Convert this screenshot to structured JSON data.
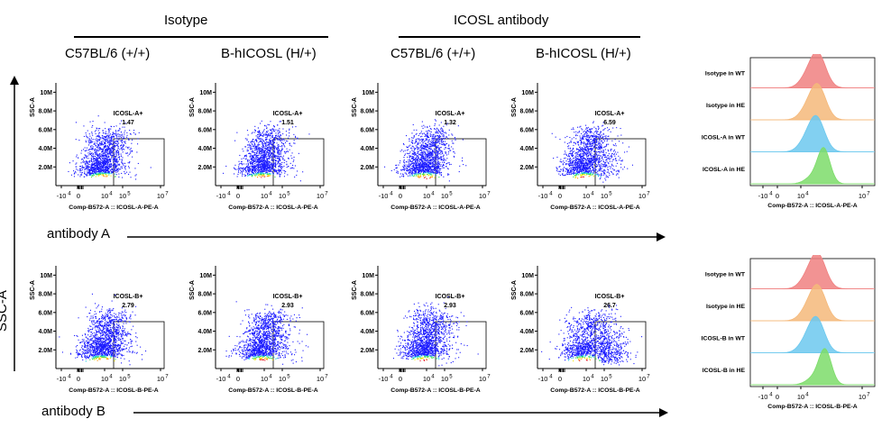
{
  "groups": [
    {
      "label": "Isotype"
    },
    {
      "label": "ICOSL antibody"
    }
  ],
  "columns": [
    "C57BL/6 (+/+)",
    "B-hICOSL (H/+)",
    "C57BL/6 (+/+)",
    "B-hICOSL (H/+)"
  ],
  "y_axis_title": "SSC-A",
  "rows": [
    {
      "label": "antibody A",
      "gate_name": "ICOSL-A+",
      "x_axis": "Comp-B572-A :: ICOSL-A-PE-A"
    },
    {
      "label": "antibody B",
      "gate_name": "ICOSL-B+",
      "x_axis": "Comp-B572-A :: ICOSL-B-PE-A"
    }
  ],
  "histograms": [
    {
      "x_axis": "Comp-B572-A :: ICOSL-A-PE-A",
      "tracks": [
        "Isotype in WT",
        "Isotype in HE",
        "ICOSL-A in WT",
        "ICOSL-A in HE"
      ]
    },
    {
      "x_axis": "Comp-B572-A :: ICOSL-B-PE-A",
      "tracks": [
        "Isotype in WT",
        "Isotype in HE",
        "ICOSL-B in WT",
        "ICOSL-B in HE"
      ]
    }
  ],
  "chart_data": [
    {
      "type": "scatter",
      "title": "",
      "row": "antibody A",
      "column": "C57BL/6 (+/+)",
      "group": "Isotype",
      "gate": "ICOSL-A+",
      "gate_percent": "1.47",
      "xlabel": "Comp-B572-A :: ICOSL-A-PE-A",
      "ylabel": "SSC-A",
      "x_ticks": [
        "-10^4",
        "0",
        "10^4",
        "10^5",
        "10^7"
      ],
      "y_ticks": [
        "2.0M",
        "4.0M",
        "6.0M",
        "8.0M",
        "10M"
      ],
      "ylim": [
        0,
        11000000
      ]
    },
    {
      "type": "scatter",
      "title": "",
      "row": "antibody A",
      "column": "B-hICOSL (H/+)",
      "group": "Isotype",
      "gate": "ICOSL-A+",
      "gate_percent": "1.51",
      "xlabel": "Comp-B572-A :: ICOSL-A-PE-A",
      "ylabel": "SSC-A",
      "x_ticks": [
        "-10^4",
        "0",
        "10^4",
        "10^5",
        "10^7"
      ],
      "y_ticks": [
        "2.0M",
        "4.0M",
        "6.0M",
        "8.0M",
        "10M"
      ],
      "ylim": [
        0,
        11000000
      ]
    },
    {
      "type": "scatter",
      "title": "",
      "row": "antibody A",
      "column": "C57BL/6 (+/+)",
      "group": "ICOSL antibody",
      "gate": "ICOSL-A+",
      "gate_percent": "1.32",
      "xlabel": "Comp-B572-A :: ICOSL-A-PE-A",
      "ylabel": "SSC-A",
      "x_ticks": [
        "-10^4",
        "0",
        "10^4",
        "10^5",
        "10^7"
      ],
      "y_ticks": [
        "2.0M",
        "4.0M",
        "6.0M",
        "8.0M",
        "10M"
      ],
      "ylim": [
        0,
        11000000
      ]
    },
    {
      "type": "scatter",
      "title": "",
      "row": "antibody A",
      "column": "B-hICOSL (H/+)",
      "group": "ICOSL antibody",
      "gate": "ICOSL-A+",
      "gate_percent": "6.59",
      "xlabel": "Comp-B572-A :: ICOSL-A-PE-A",
      "ylabel": "SSC-A",
      "x_ticks": [
        "-10^4",
        "0",
        "10^4",
        "10^5",
        "10^7"
      ],
      "y_ticks": [
        "2.0M",
        "4.0M",
        "6.0M",
        "8.0M",
        "10M"
      ],
      "ylim": [
        0,
        11000000
      ]
    },
    {
      "type": "scatter",
      "title": "",
      "row": "antibody B",
      "column": "C57BL/6 (+/+)",
      "group": "Isotype",
      "gate": "ICOSL-B+",
      "gate_percent": "2.79",
      "xlabel": "Comp-B572-A :: ICOSL-B-PE-A",
      "ylabel": "SSC-A",
      "x_ticks": [
        "-10^4",
        "0",
        "10^4",
        "10^5",
        "10^7"
      ],
      "y_ticks": [
        "2.0M",
        "4.0M",
        "6.0M",
        "8.0M",
        "10M"
      ],
      "ylim": [
        0,
        11000000
      ]
    },
    {
      "type": "scatter",
      "title": "",
      "row": "antibody B",
      "column": "B-hICOSL (H/+)",
      "group": "Isotype",
      "gate": "ICOSL-B+",
      "gate_percent": "2.93",
      "xlabel": "Comp-B572-A :: ICOSL-B-PE-A",
      "ylabel": "SSC-A",
      "x_ticks": [
        "-10^4",
        "0",
        "10^4",
        "10^5",
        "10^7"
      ],
      "y_ticks": [
        "2.0M",
        "4.0M",
        "6.0M",
        "8.0M",
        "10M"
      ],
      "ylim": [
        0,
        11000000
      ]
    },
    {
      "type": "scatter",
      "title": "",
      "row": "antibody B",
      "column": "C57BL/6 (+/+)",
      "group": "ICOSL antibody",
      "gate": "ICOSL-B+",
      "gate_percent": "2.93",
      "xlabel": "Comp-B572-A :: ICOSL-B-PE-A",
      "ylabel": "SSC-A",
      "x_ticks": [
        "-10^4",
        "0",
        "10^4",
        "10^5",
        "10^7"
      ],
      "y_ticks": [
        "2.0M",
        "4.0M",
        "6.0M",
        "8.0M",
        "10M"
      ],
      "ylim": [
        0,
        11000000
      ]
    },
    {
      "type": "scatter",
      "title": "",
      "row": "antibody B",
      "column": "B-hICOSL (H/+)",
      "group": "ICOSL antibody",
      "gate": "ICOSL-B+",
      "gate_percent": "26.7",
      "xlabel": "Comp-B572-A :: ICOSL-B-PE-A",
      "ylabel": "SSC-A",
      "x_ticks": [
        "-10^4",
        "0",
        "10^4",
        "10^5",
        "10^7"
      ],
      "y_ticks": [
        "2.0M",
        "4.0M",
        "6.0M",
        "8.0M",
        "10M"
      ],
      "ylim": [
        0,
        11000000
      ]
    },
    {
      "type": "area",
      "title": "",
      "xlabel": "Comp-B572-A :: ICOSL-A-PE-A",
      "x_ticks": [
        "-10^4",
        "0",
        "10^4",
        "10^7"
      ],
      "series": [
        {
          "name": "Isotype in WT",
          "color": "#f08080",
          "peak_log": 3.6
        },
        {
          "name": "Isotype in HE",
          "color": "#f5b97a",
          "peak_log": 3.6
        },
        {
          "name": "ICOSL-A in WT",
          "color": "#6cc8ee",
          "peak_log": 3.5
        },
        {
          "name": "ICOSL-A in HE",
          "color": "#7ddc6a",
          "peak_log": 4.1
        }
      ]
    },
    {
      "type": "area",
      "title": "",
      "xlabel": "Comp-B572-A :: ICOSL-B-PE-A",
      "x_ticks": [
        "-10^4",
        "0",
        "10^4",
        "10^7"
      ],
      "series": [
        {
          "name": "Isotype in WT",
          "color": "#f08080",
          "peak_log": 3.6
        },
        {
          "name": "Isotype in HE",
          "color": "#f5b97a",
          "peak_log": 3.6
        },
        {
          "name": "ICOSL-B in WT",
          "color": "#6cc8ee",
          "peak_log": 3.5
        },
        {
          "name": "ICOSL-B in HE",
          "color": "#7ddc6a",
          "peak_log": 4.2
        }
      ]
    }
  ]
}
